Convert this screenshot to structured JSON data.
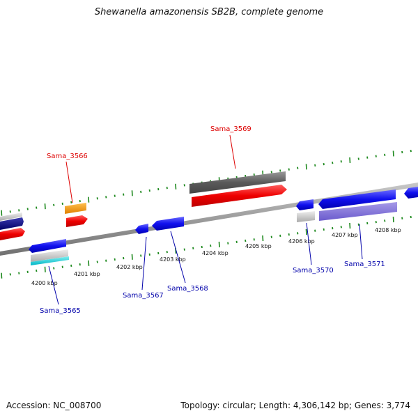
{
  "title": "Shewanella amazonensis SB2B, complete genome",
  "footer": {
    "accession": "Accession: NC_008700",
    "summary": "Topology: circular; Length: 4,306,142 bp; Genes: 3,774"
  },
  "colors": {
    "backbone": "#8a8a8a",
    "tick": "#1f8a1f",
    "forward_label": "#dd0000",
    "reverse_label": "#0000aa"
  },
  "scale": {
    "unit": "kbp",
    "labels": [
      "4200 kbp",
      "4201 kbp",
      "4202 kbp",
      "4203 kbp",
      "4204 kbp",
      "4205 kbp",
      "4206 kbp",
      "4207 kbp",
      "4208 kbp"
    ]
  },
  "gene_labels": [
    {
      "name": "Sama_3565",
      "strand": "reverse"
    },
    {
      "name": "Sama_3566",
      "strand": "forward"
    },
    {
      "name": "Sama_3567",
      "strand": "reverse"
    },
    {
      "name": "Sama_3568",
      "strand": "reverse"
    },
    {
      "name": "Sama_3569",
      "strand": "forward"
    },
    {
      "name": "Sama_3570",
      "strand": "reverse"
    },
    {
      "name": "Sama_3571",
      "strand": "reverse"
    }
  ]
}
